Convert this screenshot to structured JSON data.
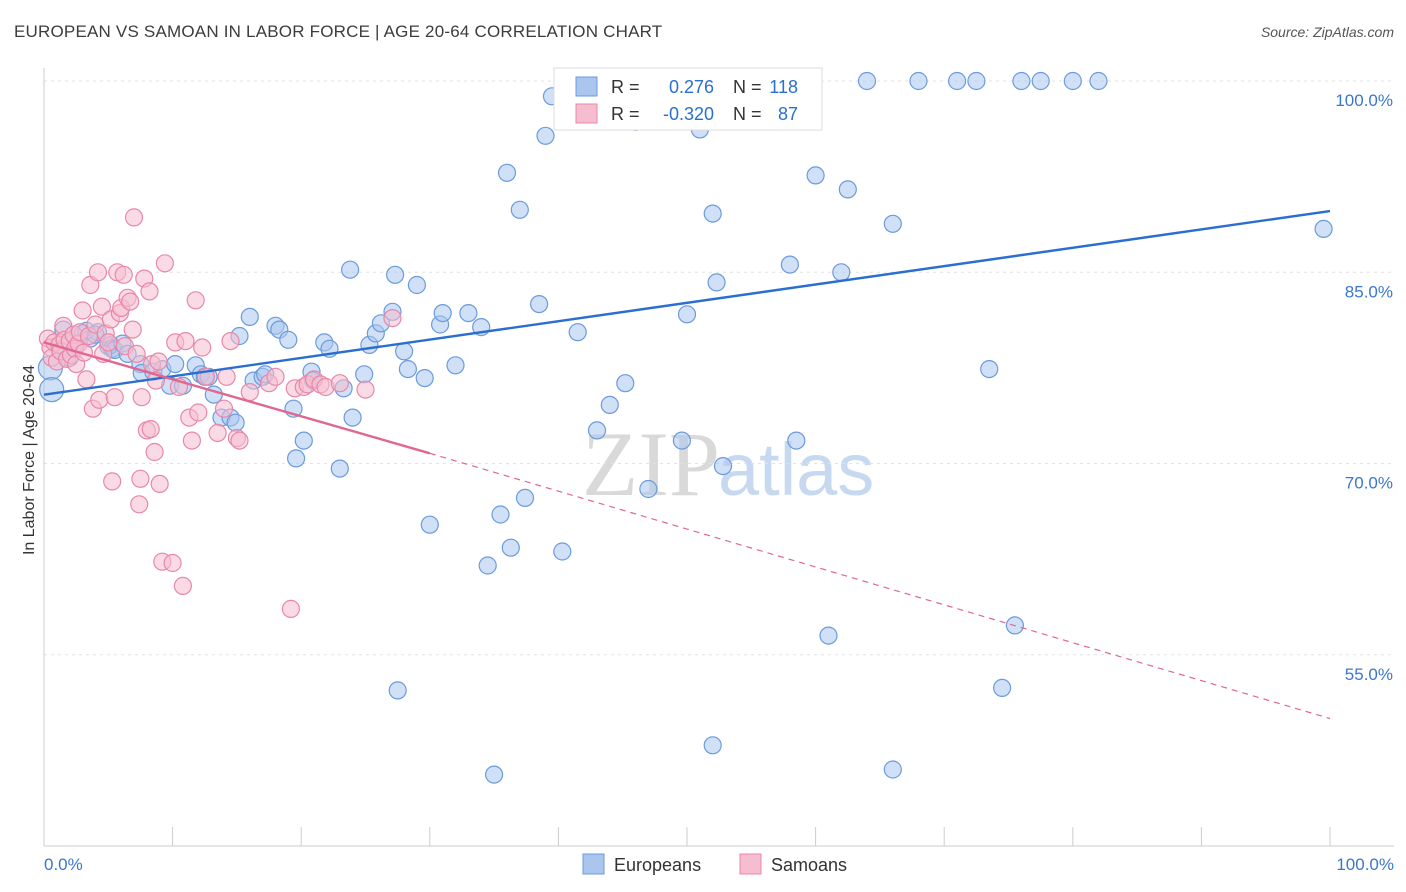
{
  "title": "EUROPEAN VS SAMOAN IN LABOR FORCE | AGE 20-64 CORRELATION CHART",
  "source": "Source: ZipAtlas.com",
  "colors": {
    "europeans": "#6b9bdc",
    "europeans_fill": "#aac6ee",
    "samoans": "#e888a8",
    "samoans_fill": "#f6bdd0",
    "eu_line": "#2a6fd0",
    "sa_line": "#e06890",
    "tick_label": "#3a77cc"
  },
  "legend": {
    "rows": [
      {
        "r_label": "R =",
        "r_value": "0.276",
        "n_label": "N =",
        "n_value": "118"
      },
      {
        "r_label": "R =",
        "r_value": "-0.320",
        "n_label": "N =",
        "n_value": "87"
      }
    ]
  },
  "bottom_legend": [
    "Europeans",
    "Samoans"
  ],
  "watermark": {
    "zip": "ZIP",
    "atlas": "atlas"
  },
  "chart_data": {
    "type": "scatter",
    "title": "EUROPEAN VS SAMOAN IN LABOR FORCE | AGE 20-64 CORRELATION CHART",
    "xlabel": "",
    "ylabel": "In Labor Force | Age 20-64",
    "xlim": [
      0,
      100
    ],
    "ylim": [
      40,
      102
    ],
    "x_tick_labels": [
      "0.0%",
      "100.0%"
    ],
    "y_ticks": [
      100,
      85,
      70,
      55
    ],
    "y_tick_labels": [
      "100.0%",
      "85.0%",
      "70.0%",
      "55.0%"
    ],
    "trend_lines": [
      {
        "series": "Europeans",
        "x": [
          0,
          100
        ],
        "y": [
          75.4,
          89.8
        ],
        "style": "solid"
      },
      {
        "series": "Samoans",
        "x": [
          0,
          30
        ],
        "y": [
          79.5,
          70.8
        ],
        "style": "solid"
      },
      {
        "series": "Samoans",
        "x": [
          30,
          100
        ],
        "y": [
          70.8,
          50.0
        ],
        "style": "dashed"
      }
    ],
    "series": [
      {
        "name": "Europeans",
        "points": [
          [
            0.5,
            77.5
          ],
          [
            0.6,
            75.8
          ],
          [
            1.2,
            79.0
          ],
          [
            1.5,
            80.5
          ],
          [
            2.0,
            78.3
          ],
          [
            2.5,
            79.4
          ],
          [
            3.0,
            80.2
          ],
          [
            3.3,
            80.4
          ],
          [
            3.6,
            79.8
          ],
          [
            4.2,
            80.3
          ],
          [
            4.0,
            80.1
          ],
          [
            5.0,
            79.2
          ],
          [
            5.2,
            79.3
          ],
          [
            5.3,
            79.0
          ],
          [
            5.5,
            78.9
          ],
          [
            6.1,
            79.4
          ],
          [
            6.5,
            78.6
          ],
          [
            7.5,
            77.8
          ],
          [
            7.6,
            77.1
          ],
          [
            8.5,
            77.2
          ],
          [
            9.2,
            77.4
          ],
          [
            9.8,
            76.1
          ],
          [
            10.2,
            77.8
          ],
          [
            10.8,
            76.1
          ],
          [
            11.8,
            77.7
          ],
          [
            12.2,
            77.0
          ],
          [
            12.5,
            76.8
          ],
          [
            12.8,
            76.8
          ],
          [
            13.2,
            75.4
          ],
          [
            13.8,
            73.6
          ],
          [
            14.5,
            73.6
          ],
          [
            14.9,
            73.2
          ],
          [
            15.2,
            80.0
          ],
          [
            16.0,
            81.5
          ],
          [
            16.3,
            76.5
          ],
          [
            17.0,
            76.8
          ],
          [
            17.2,
            77.0
          ],
          [
            18.0,
            80.8
          ],
          [
            18.3,
            80.5
          ],
          [
            19.0,
            79.7
          ],
          [
            19.4,
            74.3
          ],
          [
            19.6,
            70.4
          ],
          [
            20.2,
            71.8
          ],
          [
            20.8,
            77.2
          ],
          [
            20.9,
            76.5
          ],
          [
            21.8,
            79.5
          ],
          [
            22.2,
            79.0
          ],
          [
            23.0,
            69.6
          ],
          [
            23.3,
            75.9
          ],
          [
            23.8,
            85.2
          ],
          [
            24.0,
            73.6
          ],
          [
            24.9,
            77.0
          ],
          [
            25.3,
            79.3
          ],
          [
            25.8,
            80.2
          ],
          [
            26.2,
            81.0
          ],
          [
            27.1,
            81.9
          ],
          [
            27.3,
            84.8
          ],
          [
            28.0,
            78.8
          ],
          [
            28.3,
            77.4
          ],
          [
            29.0,
            84.0
          ],
          [
            29.6,
            76.7
          ],
          [
            30.0,
            65.2
          ],
          [
            30.8,
            80.9
          ],
          [
            31.0,
            81.8
          ],
          [
            32.0,
            77.7
          ],
          [
            33.0,
            81.8
          ],
          [
            34.0,
            80.7
          ],
          [
            34.5,
            62.0
          ],
          [
            35.5,
            66.0
          ],
          [
            36.0,
            92.8
          ],
          [
            36.3,
            63.4
          ],
          [
            37.0,
            89.9
          ],
          [
            37.4,
            67.3
          ],
          [
            38.5,
            82.5
          ],
          [
            39.0,
            95.7
          ],
          [
            39.5,
            98.8
          ],
          [
            40.3,
            63.1
          ],
          [
            41.0,
            100
          ],
          [
            41.5,
            80.3
          ],
          [
            43.0,
            72.6
          ],
          [
            44.0,
            74.6
          ],
          [
            45.0,
            100
          ],
          [
            45.2,
            76.3
          ],
          [
            46.0,
            96.8
          ],
          [
            47.0,
            68.0
          ],
          [
            48.0,
            100
          ],
          [
            49.0,
            100
          ],
          [
            49.6,
            71.8
          ],
          [
            50.0,
            81.7
          ],
          [
            51.0,
            96.2
          ],
          [
            52.0,
            89.6
          ],
          [
            52.3,
            84.2
          ],
          [
            52.8,
            69.8
          ],
          [
            54.0,
            100
          ],
          [
            55.0,
            100
          ],
          [
            56.0,
            100
          ],
          [
            58.0,
            85.6
          ],
          [
            58.5,
            71.8
          ],
          [
            60.0,
            92.6
          ],
          [
            61.0,
            56.5
          ],
          [
            62.0,
            85.0
          ],
          [
            62.5,
            91.5
          ],
          [
            64.0,
            100
          ],
          [
            66.0,
            88.8
          ],
          [
            68.0,
            100
          ],
          [
            71.0,
            100
          ],
          [
            72.5,
            100
          ],
          [
            73.5,
            77.4
          ],
          [
            76.0,
            100
          ],
          [
            77.5,
            100
          ],
          [
            80.0,
            100
          ],
          [
            82.0,
            100
          ],
          [
            99.5,
            88.4
          ],
          [
            27.5,
            52.2
          ],
          [
            35.0,
            45.6
          ],
          [
            52.0,
            47.9
          ],
          [
            66.0,
            46.0
          ],
          [
            74.5,
            52.4
          ],
          [
            75.5,
            57.3
          ]
        ]
      },
      {
        "name": "Samoans",
        "points": [
          [
            0.3,
            79.8
          ],
          [
            0.5,
            79.1
          ],
          [
            0.6,
            78.3
          ],
          [
            0.8,
            79.5
          ],
          [
            1.0,
            78.0
          ],
          [
            1.2,
            79.3
          ],
          [
            1.3,
            78.8
          ],
          [
            1.5,
            80.8
          ],
          [
            1.6,
            79.7
          ],
          [
            1.8,
            78.2
          ],
          [
            2.0,
            79.6
          ],
          [
            2.1,
            78.5
          ],
          [
            2.3,
            80.1
          ],
          [
            2.4,
            79.0
          ],
          [
            2.5,
            77.8
          ],
          [
            2.7,
            79.4
          ],
          [
            2.8,
            80.3
          ],
          [
            3.0,
            82.0
          ],
          [
            3.1,
            78.7
          ],
          [
            3.3,
            76.6
          ],
          [
            3.5,
            80.0
          ],
          [
            3.6,
            84.0
          ],
          [
            3.8,
            74.3
          ],
          [
            4.0,
            80.9
          ],
          [
            4.2,
            85.0
          ],
          [
            4.3,
            75.0
          ],
          [
            4.5,
            82.3
          ],
          [
            4.6,
            78.6
          ],
          [
            4.8,
            80.2
          ],
          [
            5.0,
            79.5
          ],
          [
            5.2,
            81.3
          ],
          [
            5.3,
            68.6
          ],
          [
            5.5,
            75.2
          ],
          [
            5.7,
            85.0
          ],
          [
            5.9,
            81.8
          ],
          [
            6.0,
            82.2
          ],
          [
            6.2,
            84.8
          ],
          [
            6.3,
            79.2
          ],
          [
            6.5,
            83.0
          ],
          [
            6.7,
            82.7
          ],
          [
            6.9,
            80.5
          ],
          [
            7.0,
            89.3
          ],
          [
            7.2,
            78.6
          ],
          [
            7.4,
            66.8
          ],
          [
            7.5,
            68.8
          ],
          [
            7.6,
            75.2
          ],
          [
            7.8,
            84.5
          ],
          [
            8.0,
            72.6
          ],
          [
            8.2,
            83.5
          ],
          [
            8.4,
            77.8
          ],
          [
            8.6,
            70.9
          ],
          [
            8.7,
            76.5
          ],
          [
            8.9,
            78.0
          ],
          [
            9.0,
            68.4
          ],
          [
            9.2,
            62.3
          ],
          [
            9.4,
            85.7
          ],
          [
            10.0,
            62.2
          ],
          [
            10.2,
            79.5
          ],
          [
            10.5,
            76.0
          ],
          [
            10.8,
            60.4
          ],
          [
            11.0,
            79.6
          ],
          [
            11.3,
            73.6
          ],
          [
            11.5,
            71.8
          ],
          [
            11.8,
            82.8
          ],
          [
            12.3,
            79.1
          ],
          [
            12.6,
            76.8
          ],
          [
            13.5,
            72.4
          ],
          [
            14.0,
            74.3
          ],
          [
            14.5,
            79.6
          ],
          [
            15.0,
            72.0
          ],
          [
            15.2,
            71.8
          ],
          [
            16.0,
            75.6
          ],
          [
            17.5,
            76.3
          ],
          [
            18.0,
            76.8
          ],
          [
            19.2,
            58.6
          ],
          [
            19.5,
            75.9
          ],
          [
            20.2,
            76.0
          ],
          [
            20.5,
            76.2
          ],
          [
            21.0,
            76.6
          ],
          [
            21.5,
            76.2
          ],
          [
            21.9,
            76.0
          ],
          [
            23.0,
            76.3
          ],
          [
            25.0,
            75.8
          ],
          [
            27.1,
            81.4
          ],
          [
            8.3,
            72.7
          ],
          [
            12.0,
            74.0
          ],
          [
            14.2,
            76.8
          ]
        ]
      }
    ]
  }
}
